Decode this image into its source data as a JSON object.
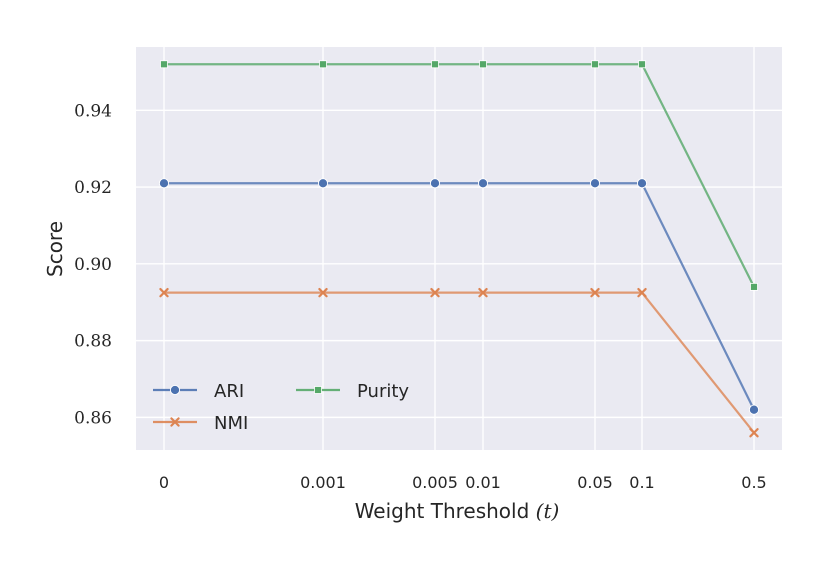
{
  "chart_data": {
    "type": "line",
    "xlabel_text": "Weight Threshold ",
    "xlabel_var": "(t)",
    "ylabel": "Score",
    "x_ticks": [
      "0",
      "0.001",
      "0.005",
      "0.01",
      "0.05",
      "0.1",
      "0.5"
    ],
    "x_scale": "categorical-nonuniform",
    "ylim": [
      0.8515,
      0.9565
    ],
    "y_ticks": [
      "0.86",
      "0.88",
      "0.90",
      "0.92",
      "0.94"
    ],
    "y_tick_values": [
      0.86,
      0.88,
      0.9,
      0.92,
      0.94
    ],
    "grid": true,
    "legend_position": "lower-left",
    "series": [
      {
        "name": "ARI",
        "color": "#4c72b0",
        "marker": "circle",
        "values": [
          0.921,
          0.921,
          0.921,
          0.921,
          0.921,
          0.921,
          0.862
        ]
      },
      {
        "name": "NMI",
        "color": "#dd8452",
        "marker": "x",
        "values": [
          0.8925,
          0.8925,
          0.8925,
          0.8925,
          0.8925,
          0.8925,
          0.856
        ]
      },
      {
        "name": "Purity",
        "color": "#55a868",
        "marker": "square",
        "values": [
          0.952,
          0.952,
          0.952,
          0.952,
          0.952,
          0.952,
          0.894
        ]
      }
    ]
  }
}
